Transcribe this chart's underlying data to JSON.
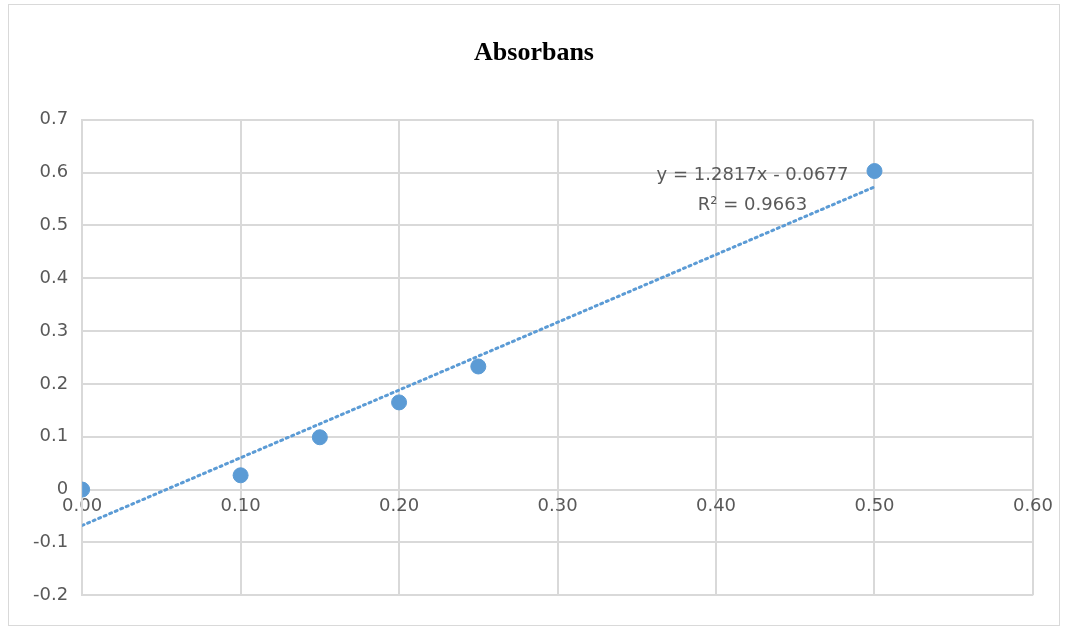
{
  "chart_data": {
    "type": "scatter",
    "title": "Absorbans",
    "series": [
      {
        "color": "#5b9bd5",
        "x": [
          0,
          0.1,
          0.15,
          0.2,
          0.25,
          0.5
        ],
        "values": [
          0,
          0.027,
          0.099,
          0.165,
          0.233,
          0.603
        ],
        "marker": "circle"
      },
      {
        "type": "line",
        "color": "#5b9bd5",
        "x": [
          0,
          0.5
        ],
        "values": [
          -0.068,
          0.573
        ],
        "line_style": "dotted",
        "marker": "none"
      }
    ],
    "xlim": [
      0,
      0.6
    ],
    "xticks": [
      {
        "value": 0,
        "label": "0.00"
      },
      {
        "value": 0.1,
        "label": "0.10"
      },
      {
        "value": 0.2,
        "label": "0.20"
      },
      {
        "value": 0.3,
        "label": "0.30"
      },
      {
        "value": 0.4,
        "label": "0.40"
      },
      {
        "value": 0.5,
        "label": "0.50"
      },
      {
        "value": 0.6,
        "label": "0.60"
      }
    ],
    "ylim": [
      -0.2,
      0.7
    ],
    "yticks": [
      -0.2,
      -0.1,
      0,
      0.1,
      0.2,
      0.3,
      0.4,
      0.5,
      0.6,
      0.7
    ],
    "grid": true,
    "legend": false,
    "annotations": [
      "y = 1.2817x - 0.0677",
      "R² = 0.9663"
    ]
  }
}
